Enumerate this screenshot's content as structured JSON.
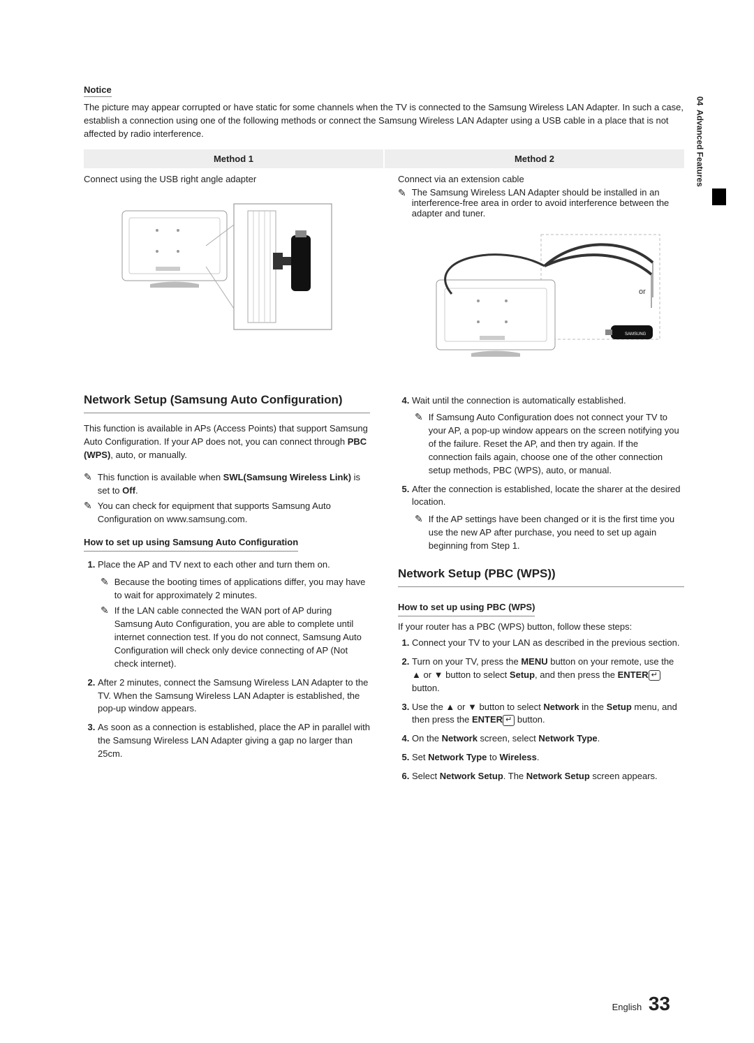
{
  "side": {
    "chapter_num": "04",
    "chapter_label": "Advanced Features"
  },
  "notice": {
    "heading": "Notice",
    "text": "The picture may appear corrupted or have static for some channels when the TV is connected to the Samsung Wireless LAN Adapter. In such a case, establish a connection using one of the following methods or connect the Samsung Wireless LAN Adapter using a USB cable in a place that is not affected by radio interference."
  },
  "method_headers": [
    "Method 1",
    "Method 2"
  ],
  "method1": {
    "caption": "Connect using the USB right angle adapter"
  },
  "method2": {
    "caption": "Connect via an extension cable",
    "note": "The Samsung Wireless LAN Adapter should be installed in an interference-free area in order to avoid interference between the adapter and tuner.",
    "diagram_or": "or"
  },
  "section_auto": {
    "heading": "Network Setup (Samsung Auto Configuration)",
    "intro_html": "This function is available in APs (Access Points) that support Samsung Auto Configuration. If your AP does not, you can connect through <b>PBC (WPS)</b>, auto, or manually.",
    "notes": [
      "This function is available when <b>SWL(Samsung Wireless Link)</b> is set to <b>Off</b>.",
      "You can check for equipment that supports Samsung Auto Configuration on www.samsung.com."
    ],
    "subheading": "How to set up using Samsung Auto Configuration",
    "step1": "Place the AP and TV next to each other and turn them on.",
    "step1_notes": [
      "Because the booting times of applications differ, you may have to wait for approximately 2 minutes.",
      "If the LAN cable connected the WAN port of AP during Samsung Auto Configuration, you are able to complete until internet connection test. If you do not connect, Samsung Auto Configuration will check only device connecting of AP (Not check internet)."
    ],
    "step2": "After 2 minutes, connect the Samsung Wireless LAN Adapter to the TV. When the Samsung Wireless LAN Adapter is established, the pop-up window appears.",
    "step3": "As soon as a connection is established, place the AP in parallel with the Samsung Wireless LAN Adapter giving a gap no larger than 25cm.",
    "step4": "Wait until the connection is automatically established.",
    "step4_note": "If Samsung Auto Configuration does not connect your TV to your AP, a pop-up window appears on the screen notifying you of the failure. Reset the AP, and then try again. If the connection fails again, choose one of the other connection setup methods, PBC (WPS), auto, or manual.",
    "step5": "After the connection is established, locate the sharer at the desired location.",
    "step5_note": "If the AP settings have been changed or it is the first time you use the new AP after purchase, you need to set up again beginning from Step 1."
  },
  "section_pbc": {
    "heading": "Network Setup (PBC (WPS))",
    "subheading": "How to set up using PBC (WPS)",
    "intro": "If your router has a PBC (WPS) button, follow these steps:",
    "step1": "Connect your TV to your LAN as described in the previous section.",
    "step2_html": "Turn on your TV, press the <b>MENU</b> button on your remote, use the ▲ or ▼ button to select <b>Setup</b>, and then press the <b>ENTER</b><span class=\"enter-icon\">↵</span> button.",
    "step3_html": "Use the ▲ or ▼ button to select <b>Network</b> in the <b>Setup</b> menu, and then press the <b>ENTER</b><span class=\"enter-icon\">↵</span> button.",
    "step4_html": "On the <b>Network</b> screen, select <b>Network Type</b>.",
    "step5_html": "Set <b>Network Type</b> to <b>Wireless</b>.",
    "step6_html": "Select <b>Network Setup</b>. The <b>Network Setup</b> screen appears."
  },
  "footer": {
    "lang": "English",
    "page": "33"
  },
  "colors": {
    "header_bg": "#eeeeee",
    "border": "#888888",
    "text": "#222222"
  }
}
